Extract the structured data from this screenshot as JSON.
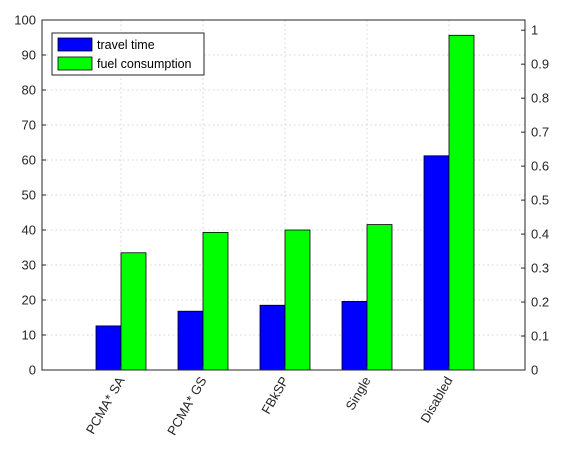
{
  "chart_data": {
    "type": "bar",
    "categories": [
      "PCMA* SA",
      "PCMA* GS",
      "FBkSP",
      "Single",
      "Disabled"
    ],
    "series": [
      {
        "name": "travel time",
        "axis": "left",
        "color": "#0000ff",
        "values": [
          12.6,
          16.8,
          18.5,
          19.6,
          61.2
        ]
      },
      {
        "name": "fuel consumption",
        "axis": "right",
        "color": "#00ff00",
        "values": [
          0.345,
          0.405,
          0.412,
          0.428,
          0.985
        ]
      }
    ],
    "y_left": {
      "min": 0,
      "max": 100,
      "ticks": [
        0,
        10,
        20,
        30,
        40,
        50,
        60,
        70,
        80,
        90,
        100
      ]
    },
    "y_right": {
      "min": 0,
      "max": 1.03,
      "ticks": [
        "0",
        "0.1",
        "0.2",
        "0.3",
        "0.4",
        "0.5",
        "0.6",
        "0.7",
        "0.8",
        "0.9",
        "1"
      ]
    },
    "grid": "on",
    "legend_position": "top-left"
  }
}
